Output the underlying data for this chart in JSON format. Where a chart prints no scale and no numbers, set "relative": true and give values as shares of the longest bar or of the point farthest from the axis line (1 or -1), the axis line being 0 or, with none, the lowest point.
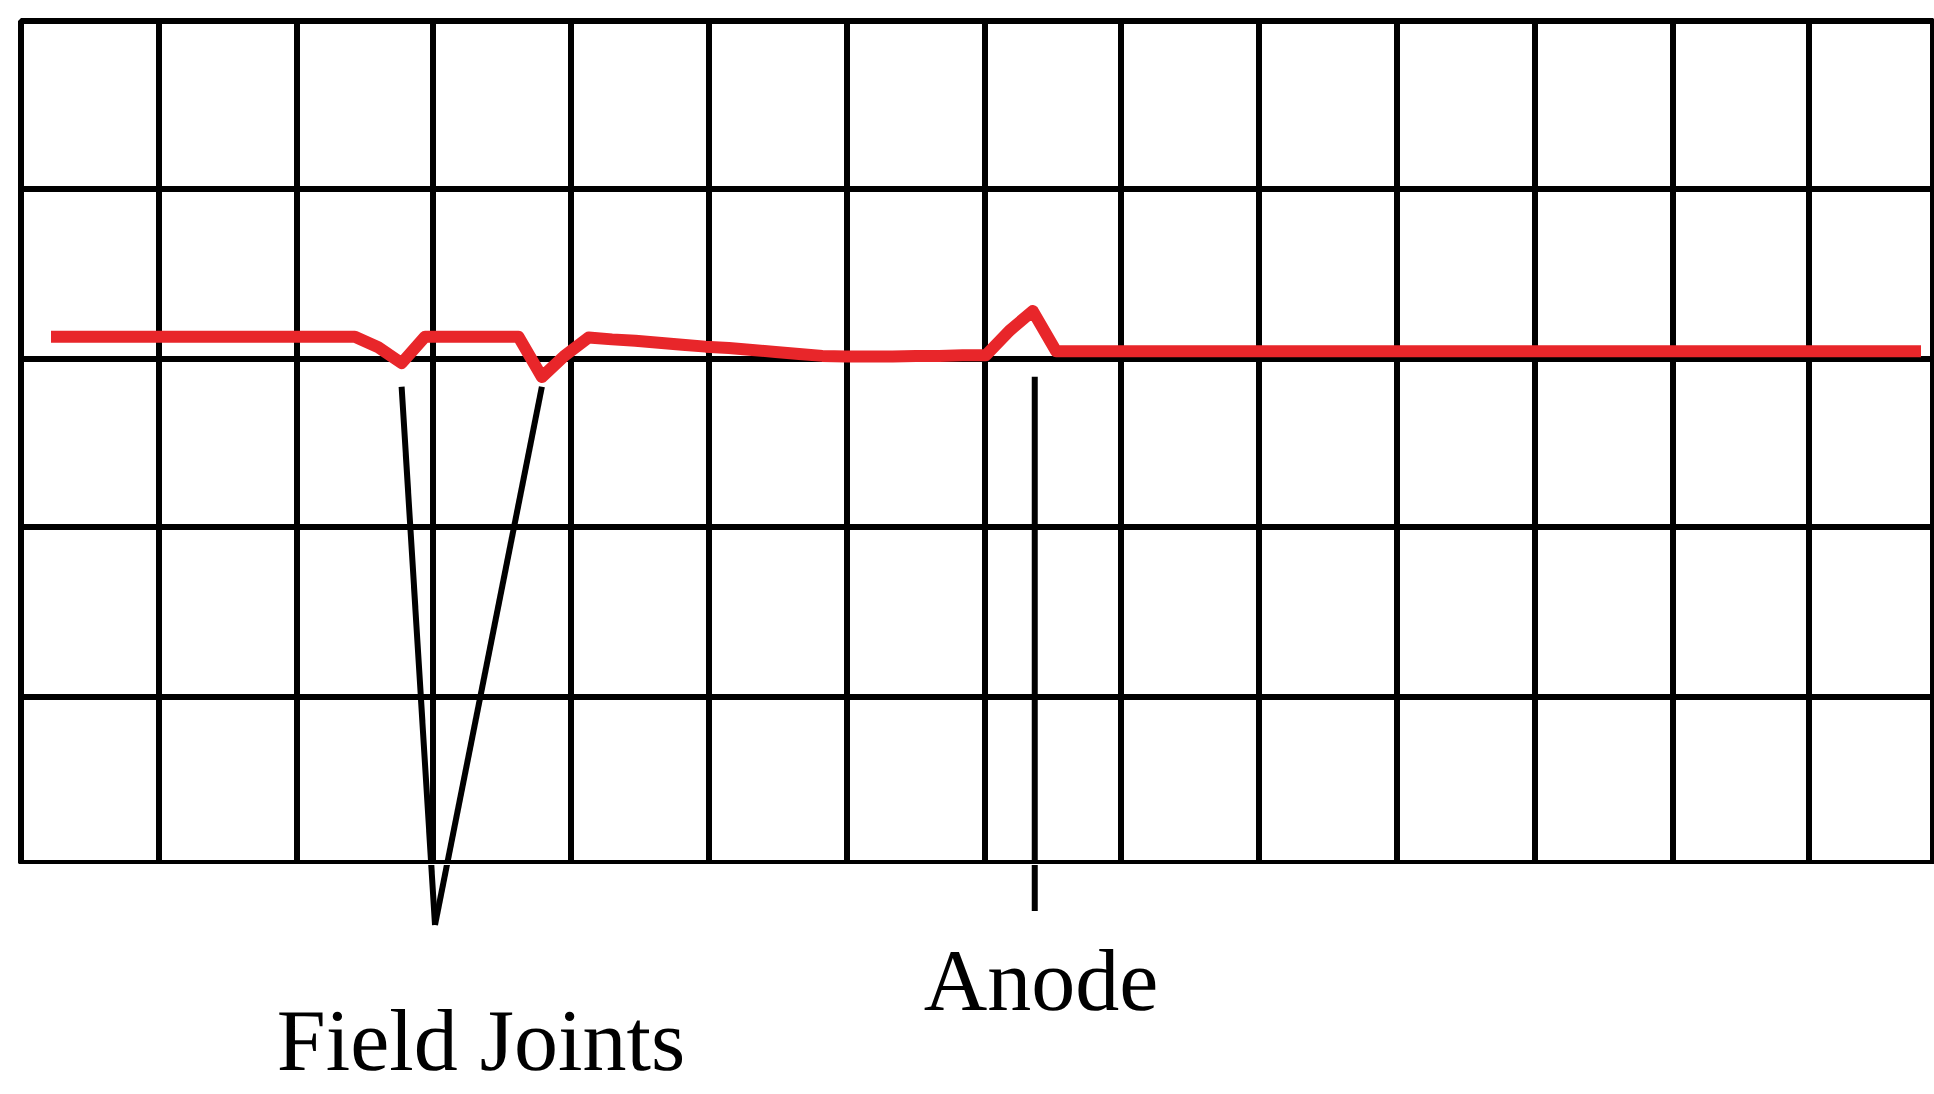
{
  "chart_data": {
    "type": "line",
    "relative": true,
    "grid": true,
    "categories": [
      null,
      null,
      null,
      null,
      null,
      null,
      null,
      null,
      null,
      null,
      null,
      null,
      null,
      null,
      null,
      null,
      null,
      null,
      null,
      null,
      null,
      null,
      null,
      null,
      null,
      null,
      null,
      null,
      null,
      null,
      null,
      null,
      null,
      null,
      null,
      null,
      null,
      null,
      null,
      null,
      null,
      null,
      null,
      null,
      null,
      null,
      null,
      null,
      null,
      null,
      null,
      null,
      null,
      null,
      null,
      null,
      null,
      null,
      null,
      null,
      null,
      null,
      null,
      null,
      null,
      null,
      null,
      null,
      null,
      null,
      null,
      null,
      null,
      null,
      null,
      null,
      null,
      null,
      null,
      null,
      null
    ],
    "series": [
      {
        "color": "#e8262a",
        "values": [
          0.61,
          0.61,
          0.61,
          0.61,
          0.61,
          0.61,
          0.61,
          0.61,
          0.61,
          0.61,
          0.61,
          0.61,
          0.61,
          0.61,
          0.45,
          0.21,
          0.61,
          0.61,
          0.61,
          0.61,
          0.61,
          0,
          0.33,
          0.6,
          0.57,
          0.55,
          0.52,
          0.49,
          0.46,
          0.44,
          0.41,
          0.38,
          0.35,
          0.32,
          0.31,
          0.31,
          0.31,
          0.32,
          0.32,
          0.33,
          0.33,
          0.7,
          1,
          0.39,
          0.39,
          0.39,
          0.39,
          0.39,
          0.39,
          0.39,
          0.39,
          0.39,
          0.39,
          0.39,
          0.39,
          0.39,
          0.39,
          0.39,
          0.39,
          0.39,
          0.39,
          0.39,
          0.39,
          0.39,
          0.39,
          0.39,
          0.39,
          0.39,
          0.39,
          0.39,
          0.39,
          0.39,
          0.39,
          0.39,
          0.39,
          0.39,
          0.39,
          0.39,
          0.39,
          0.39,
          0.39
        ]
      }
    ],
    "annotations": [
      "Field Joints",
      "Anode"
    ]
  }
}
